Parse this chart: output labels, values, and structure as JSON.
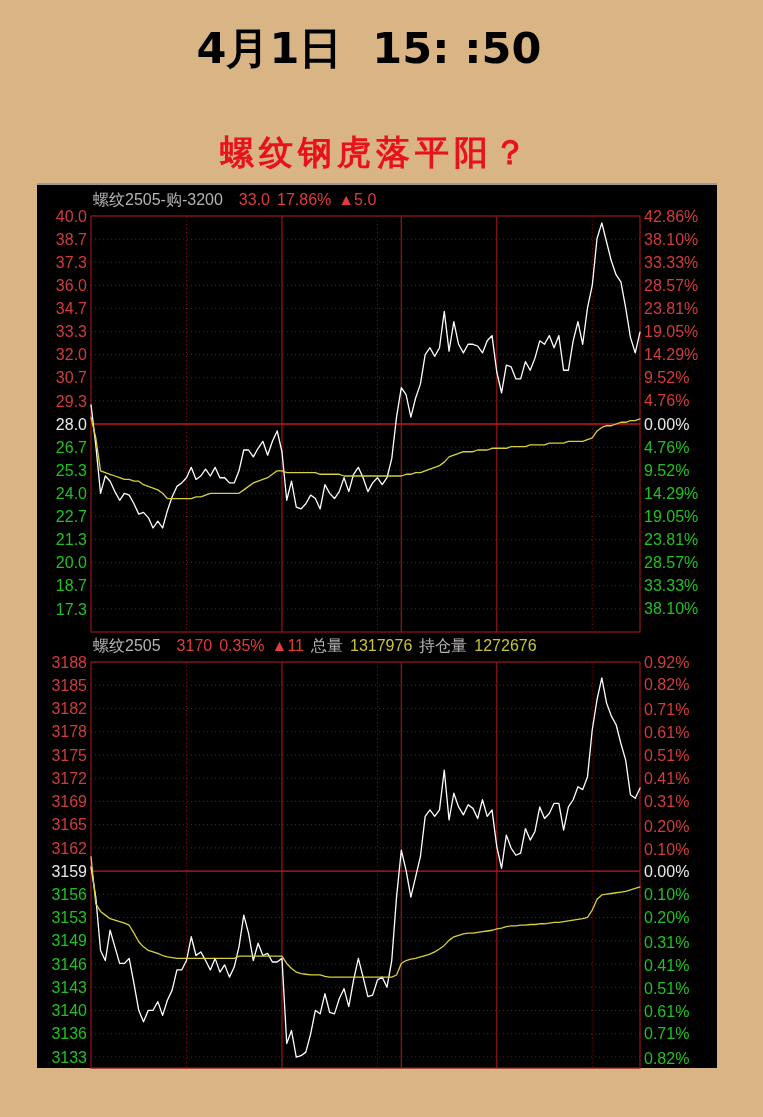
{
  "chart_data": [
    {
      "type": "line",
      "title": "4月1日  15: :50",
      "subtitle": "螺纹钢虎落平阳？",
      "annotations": [
        "螺纹2505-购-3200",
        "33.0",
        "17.86%",
        "▲5.0"
      ],
      "categories": [
        null,
        null,
        null,
        null,
        null,
        null,
        null,
        null,
        null,
        null,
        null,
        null,
        null,
        null,
        null,
        null,
        null,
        null,
        null,
        null,
        null,
        null,
        null,
        null,
        null,
        null,
        null,
        null,
        null,
        null,
        null,
        null,
        null,
        null,
        null,
        null,
        null,
        null,
        null,
        null,
        null,
        null,
        null,
        null,
        null,
        null,
        null,
        null,
        null,
        null,
        null,
        null,
        null,
        null,
        null,
        null,
        null,
        null,
        null,
        null,
        null,
        null,
        null,
        null,
        null,
        null,
        null,
        null,
        null,
        null,
        null,
        null,
        null,
        null,
        null,
        null,
        null,
        null,
        null,
        null,
        null,
        null,
        null,
        null,
        null,
        null,
        null,
        null,
        null,
        null,
        null,
        null,
        null,
        null,
        null,
        null,
        null,
        null,
        null,
        null,
        null,
        null,
        null,
        null,
        null,
        null,
        null,
        null,
        null,
        null,
        null,
        null,
        null,
        null,
        null,
        null
      ],
      "series": [
        {
          "color": "#ffffff",
          "values": [
            29.1,
            26.8,
            24.0,
            25.0,
            24.7,
            24.1,
            23.6,
            24.0,
            23.9,
            23.4,
            22.8,
            22.9,
            22.6,
            22.0,
            22.4,
            22.0,
            23.0,
            23.8,
            24.4,
            24.6,
            24.9,
            25.5,
            24.8,
            25.0,
            25.4,
            25.0,
            25.5,
            24.9,
            24.9,
            24.6,
            24.6,
            25.3,
            26.5,
            26.5,
            26.1,
            26.6,
            27.0,
            26.2,
            27.0,
            27.6,
            26.4,
            23.6,
            24.7,
            23.2,
            23.1,
            23.4,
            23.9,
            23.7,
            23.1,
            24.5,
            24.0,
            23.7,
            24.1,
            24.9,
            24.1,
            25.1,
            25.5,
            24.9,
            24.1,
            24.6,
            24.9,
            24.5,
            24.9,
            26.0,
            28.4,
            30.1,
            29.7,
            28.4,
            29.5,
            30.3,
            32.0,
            32.4,
            31.9,
            32.4,
            34.5,
            32.2,
            33.9,
            32.6,
            32.1,
            32.6,
            32.6,
            32.5,
            32.1,
            32.8,
            33.1,
            31.0,
            29.8,
            31.4,
            31.3,
            30.6,
            30.6,
            31.6,
            31.1,
            31.8,
            32.8,
            32.6,
            33.1,
            32.4,
            33.1,
            31.1,
            31.1,
            32.8,
            33.9,
            32.6,
            34.7,
            36.0,
            38.7,
            39.6,
            38.5,
            37.4,
            36.6,
            36.2,
            34.7,
            33.0,
            32.1,
            33.3
          ]
        },
        {
          "color": "#d8cf3c",
          "values": [
            28.4,
            27.2,
            25.3,
            25.2,
            25.1,
            25.0,
            24.9,
            24.8,
            24.8,
            24.7,
            24.7,
            24.5,
            24.4,
            24.3,
            24.2,
            24.0,
            23.7,
            23.7,
            23.7,
            23.7,
            23.7,
            23.7,
            23.8,
            23.8,
            23.9,
            24.0,
            24.0,
            24.0,
            24.0,
            24.0,
            24.0,
            24.0,
            24.2,
            24.4,
            24.6,
            24.7,
            24.8,
            24.9,
            25.1,
            25.3,
            25.3,
            25.2,
            25.2,
            25.2,
            25.2,
            25.2,
            25.2,
            25.2,
            25.1,
            25.1,
            25.1,
            25.1,
            25.1,
            25.0,
            25.0,
            25.0,
            25.0,
            25.0,
            25.0,
            25.0,
            25.0,
            25.0,
            25.0,
            25.0,
            25.0,
            25.0,
            25.1,
            25.1,
            25.2,
            25.2,
            25.3,
            25.4,
            25.5,
            25.6,
            25.8,
            26.1,
            26.2,
            26.3,
            26.4,
            26.4,
            26.4,
            26.5,
            26.5,
            26.5,
            26.6,
            26.6,
            26.6,
            26.6,
            26.7,
            26.7,
            26.7,
            26.7,
            26.8,
            26.8,
            26.8,
            26.8,
            26.9,
            26.9,
            26.9,
            26.9,
            27.0,
            27.0,
            27.0,
            27.0,
            27.1,
            27.2,
            27.6,
            27.8,
            27.9,
            27.9,
            28.0,
            28.1,
            28.1,
            28.2,
            28.2,
            28.3
          ]
        }
      ],
      "ylim": [
        16,
        40
      ],
      "yticks": [
        {
          "value": 40,
          "label": "40.0"
        },
        {
          "value": 38.67,
          "label": "38.7"
        },
        {
          "value": 37.33,
          "label": "37.3"
        },
        {
          "value": 36,
          "label": "36.0"
        },
        {
          "value": 34.67,
          "label": "34.7"
        },
        {
          "value": 33.33,
          "label": "33.3"
        },
        {
          "value": 32,
          "label": "32.0"
        },
        {
          "value": 30.67,
          "label": "30.7"
        },
        {
          "value": 29.33,
          "label": "29.3"
        },
        {
          "value": 28,
          "label": "28.0"
        },
        {
          "value": 26.67,
          "label": "26.7"
        },
        {
          "value": 25.33,
          "label": "25.3"
        },
        {
          "value": 24,
          "label": "24.0"
        },
        {
          "value": 22.67,
          "label": "22.7"
        },
        {
          "value": 21.33,
          "label": "21.3"
        },
        {
          "value": 20,
          "label": "20.0"
        },
        {
          "value": 18.67,
          "label": "18.7"
        },
        {
          "value": 17.33,
          "label": "17.3"
        }
      ],
      "y2lim": [
        -42.86,
        42.86
      ],
      "y2ticks": [
        {
          "value": 42.86,
          "label": "42.86%"
        },
        {
          "value": 38.1,
          "label": "38.10%"
        },
        {
          "value": 33.33,
          "label": "33.33%"
        },
        {
          "value": 28.57,
          "label": "28.57%"
        },
        {
          "value": 23.81,
          "label": "23.81%"
        },
        {
          "value": 19.05,
          "label": "19.05%"
        },
        {
          "value": 14.29,
          "label": "14.29%"
        },
        {
          "value": 9.52,
          "label": "9.52%"
        },
        {
          "value": 4.76,
          "label": "4.76%"
        },
        {
          "value": 0,
          "label": "0.00%"
        },
        {
          "value": -4.76,
          "label": "4.76%"
        },
        {
          "value": -9.52,
          "label": "9.52%"
        },
        {
          "value": -14.29,
          "label": "14.29%"
        },
        {
          "value": -19.05,
          "label": "19.05%"
        },
        {
          "value": -23.81,
          "label": "23.81%"
        },
        {
          "value": -28.57,
          "label": "28.57%"
        },
        {
          "value": -33.33,
          "label": "33.33%"
        },
        {
          "value": -38.1,
          "label": "38.10%"
        }
      ],
      "tick_labels": "y",
      "grid": true,
      "ref_lines": [
        {
          "axis": "y",
          "value": 28,
          "color": "#c01818"
        }
      ]
    },
    {
      "type": "line",
      "annotations": [
        "螺纹2505",
        "3170",
        "0.35%",
        "▲11",
        "总量",
        "1317976",
        "持仓量",
        "1272676"
      ],
      "categories": [
        null,
        null,
        null,
        null,
        null,
        null,
        null,
        null,
        null,
        null,
        null,
        null,
        null,
        null,
        null,
        null,
        null,
        null,
        null,
        null,
        null,
        null,
        null,
        null,
        null,
        null,
        null,
        null,
        null,
        null,
        null,
        null,
        null,
        null,
        null,
        null,
        null,
        null,
        null,
        null,
        null,
        null,
        null,
        null,
        null,
        null,
        null,
        null,
        null,
        null,
        null,
        null,
        null,
        null,
        null,
        null,
        null,
        null,
        null,
        null,
        null,
        null,
        null,
        null,
        null,
        null,
        null,
        null,
        null,
        null,
        null,
        null,
        null,
        null,
        null,
        null,
        null,
        null,
        null,
        null,
        null,
        null,
        null,
        null,
        null,
        null,
        null,
        null,
        null,
        null,
        null,
        null,
        null,
        null,
        null,
        null,
        null,
        null,
        null,
        null,
        null,
        null,
        null,
        null,
        null,
        null,
        null,
        null,
        null,
        null,
        null,
        null,
        null,
        null,
        null,
        null
      ],
      "series": [
        {
          "color": "#ffffff",
          "values": [
            3159.6,
            3155.4,
            3148.0,
            3146.6,
            3150.8,
            3148.5,
            3146.2,
            3146.2,
            3146.9,
            3143.4,
            3139.7,
            3138.1,
            3139.7,
            3139.7,
            3140.9,
            3139.0,
            3141.1,
            3142.5,
            3145.3,
            3145.3,
            3146.6,
            3149.9,
            3147.3,
            3147.8,
            3146.6,
            3145.3,
            3146.9,
            3145.0,
            3146.0,
            3144.3,
            3145.7,
            3148.5,
            3152.9,
            3150.4,
            3146.6,
            3149.0,
            3147.3,
            3147.6,
            3146.4,
            3146.4,
            3146.9,
            3135.1,
            3136.9,
            3133.2,
            3133.4,
            3133.9,
            3136.4,
            3139.7,
            3139.2,
            3142.0,
            3139.4,
            3139.2,
            3141.3,
            3142.7,
            3140.2,
            3143.9,
            3146.9,
            3144.3,
            3141.6,
            3141.8,
            3143.9,
            3144.3,
            3142.9,
            3146.6,
            3155.4,
            3161.9,
            3159.1,
            3155.4,
            3158.2,
            3161.0,
            3166.6,
            3167.5,
            3166.6,
            3167.5,
            3173.0,
            3166.1,
            3169.8,
            3167.9,
            3166.8,
            3168.2,
            3167.7,
            3166.3,
            3168.9,
            3166.6,
            3167.5,
            3162.4,
            3159.4,
            3164.0,
            3162.2,
            3161.2,
            3161.5,
            3164.9,
            3163.3,
            3164.5,
            3167.9,
            3166.3,
            3167.0,
            3168.4,
            3168.4,
            3164.7,
            3167.9,
            3168.9,
            3170.7,
            3170.3,
            3172.1,
            3178.6,
            3182.8,
            3185.8,
            3182.3,
            3180.5,
            3179.3,
            3176.7,
            3174.4,
            3169.6,
            3169.1,
            3170.5
          ]
        },
        {
          "color": "#d8cf3c",
          "values": [
            3161.0,
            3154.5,
            3153.4,
            3152.9,
            3152.4,
            3152.2,
            3152.0,
            3151.8,
            3151.5,
            3150.4,
            3149.2,
            3148.5,
            3148.0,
            3147.8,
            3147.6,
            3147.3,
            3147.1,
            3147.0,
            3146.9,
            3146.9,
            3146.9,
            3146.9,
            3146.9,
            3146.9,
            3146.9,
            3146.9,
            3146.9,
            3146.9,
            3146.9,
            3146.9,
            3146.9,
            3147.2,
            3147.2,
            3147.2,
            3147.2,
            3147.2,
            3147.2,
            3147.2,
            3147.2,
            3147.2,
            3147.2,
            3146.2,
            3145.5,
            3145.0,
            3144.8,
            3144.7,
            3144.6,
            3144.6,
            3144.6,
            3144.4,
            3144.3,
            3144.3,
            3144.3,
            3144.3,
            3144.3,
            3144.3,
            3144.3,
            3144.3,
            3144.3,
            3144.3,
            3144.3,
            3144.3,
            3144.3,
            3144.3,
            3144.6,
            3146.2,
            3146.6,
            3146.8,
            3146.9,
            3147.1,
            3147.3,
            3147.5,
            3147.8,
            3148.2,
            3148.7,
            3149.4,
            3149.9,
            3150.1,
            3150.3,
            3150.4,
            3150.4,
            3150.5,
            3150.6,
            3150.7,
            3150.8,
            3151.0,
            3151.1,
            3151.3,
            3151.4,
            3151.4,
            3151.5,
            3151.5,
            3151.6,
            3151.6,
            3151.7,
            3151.7,
            3151.8,
            3151.9,
            3151.9,
            3152.0,
            3152.1,
            3152.2,
            3152.3,
            3152.4,
            3152.6,
            3153.6,
            3155.1,
            3155.7,
            3155.8,
            3155.9,
            3156.0,
            3156.1,
            3156.2,
            3156.4,
            3156.6,
            3156.8
          ]
        }
      ],
      "ylim": [
        3131.7,
        3188
      ],
      "yticks": [
        3188,
        {
          "value": 3184.78,
          "label": "3185"
        },
        {
          "value": 3181.56,
          "label": "3182"
        },
        {
          "value": 3178.33,
          "label": "3178"
        },
        {
          "value": 3175.11,
          "label": "3175"
        },
        {
          "value": 3171.89,
          "label": "3172"
        },
        {
          "value": 3168.67,
          "label": "3169"
        },
        {
          "value": 3165.44,
          "label": "3165"
        },
        {
          "value": 3162.22,
          "label": "3162"
        },
        3159,
        {
          "value": 3155.78,
          "label": "3156"
        },
        {
          "value": 3152.56,
          "label": "3153"
        },
        {
          "value": 3149.33,
          "label": "3149"
        },
        {
          "value": 3146.11,
          "label": "3146"
        },
        {
          "value": 3142.89,
          "label": "3143"
        },
        {
          "value": 3139.67,
          "label": "3140"
        },
        {
          "value": 3136.44,
          "label": "3136"
        },
        {
          "value": 3133.22,
          "label": "3133"
        }
      ],
      "y2lim": [
        -0.86,
        0.92
      ],
      "y2ticks": [
        {
          "value": 0.92,
          "label": "0.92%"
        },
        {
          "value": 0.82,
          "label": "0.82%"
        },
        {
          "value": 0.71,
          "label": "0.71%"
        },
        {
          "value": 0.61,
          "label": "0.61%"
        },
        {
          "value": 0.51,
          "label": "0.51%"
        },
        {
          "value": 0.41,
          "label": "0.41%"
        },
        {
          "value": 0.31,
          "label": "0.31%"
        },
        {
          "value": 0.2,
          "label": "0.20%"
        },
        {
          "value": 0.1,
          "label": "0.10%"
        },
        {
          "value": 0,
          "label": "0.00%"
        },
        {
          "value": -0.1,
          "label": "0.10%"
        },
        {
          "value": -0.2,
          "label": "0.20%"
        },
        {
          "value": -0.31,
          "label": "0.31%"
        },
        {
          "value": -0.41,
          "label": "0.41%"
        },
        {
          "value": -0.51,
          "label": "0.51%"
        },
        {
          "value": -0.61,
          "label": "0.61%"
        },
        {
          "value": -0.71,
          "label": "0.71%"
        },
        {
          "value": -0.82,
          "label": "0.82%"
        }
      ],
      "tick_labels": "y",
      "grid": true,
      "ref_lines": [
        {
          "axis": "y",
          "value": 3159,
          "color": "#c01818"
        }
      ]
    }
  ]
}
